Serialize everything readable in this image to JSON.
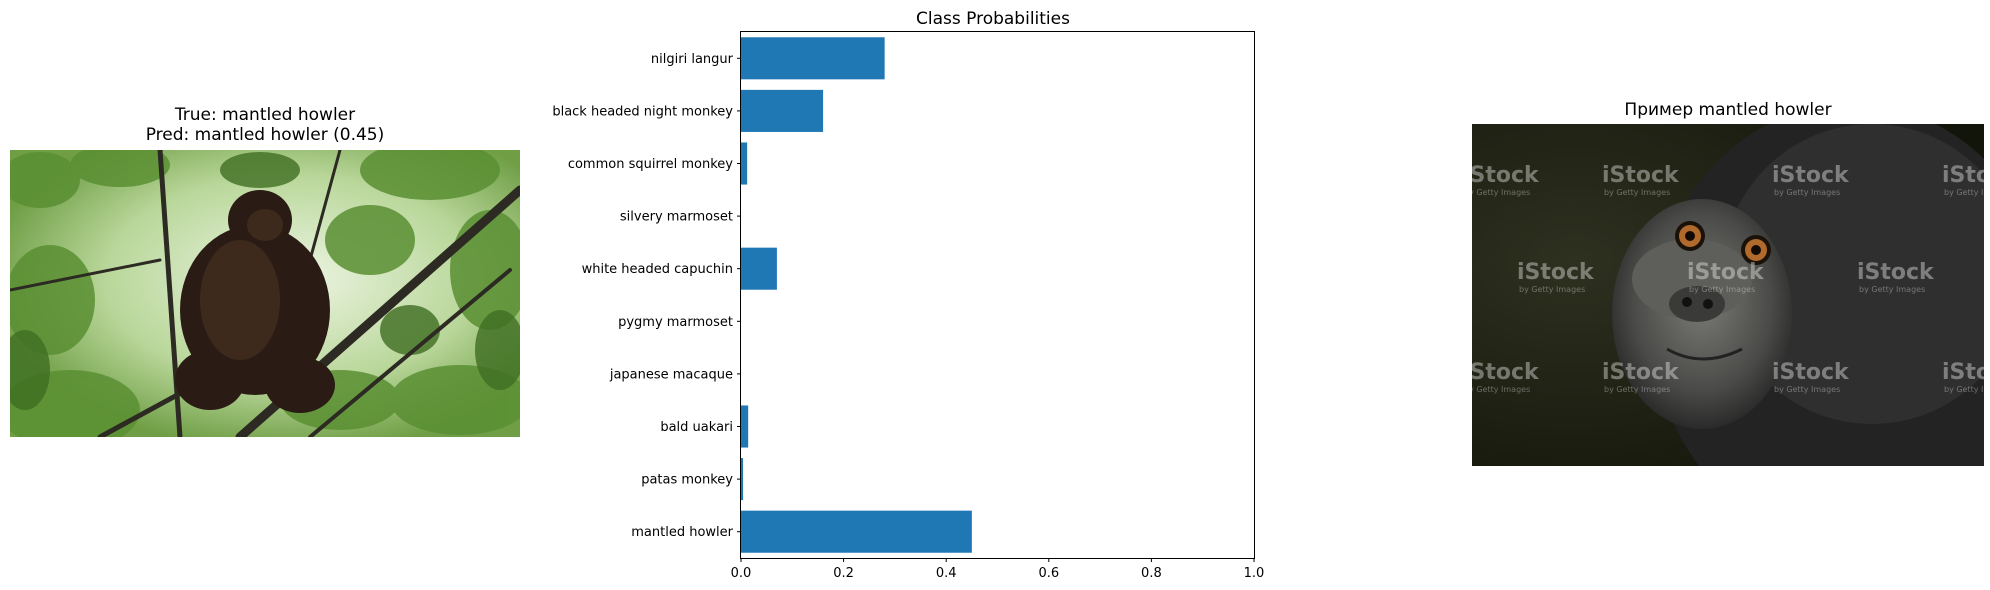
{
  "left_panel": {
    "title_line1": "True: mantled howler",
    "title_line2": "Pred: mantled howler (0.45)"
  },
  "right_panel": {
    "title": "Пример mantled howler",
    "watermark": "iStock",
    "watermark_sub": "by Getty Images"
  },
  "chart_data": {
    "type": "bar",
    "orientation": "horizontal",
    "title": "Class Probabilities",
    "categories": [
      "nilgiri langur",
      "black headed night monkey",
      "common squirrel monkey",
      "silvery marmoset",
      "white headed capuchin",
      "pygmy marmoset",
      "japanese macaque",
      "bald uakari",
      "patas monkey",
      "mantled howler"
    ],
    "values": [
      0.28,
      0.16,
      0.012,
      0.0,
      0.07,
      0.0,
      0.0,
      0.014,
      0.004,
      0.45
    ],
    "xlim": [
      0,
      1.0
    ],
    "xticks": [
      "0.0",
      "0.2",
      "0.4",
      "0.6",
      "0.8",
      "1.0"
    ],
    "bar_color": "#1f77b4",
    "grid": false
  }
}
